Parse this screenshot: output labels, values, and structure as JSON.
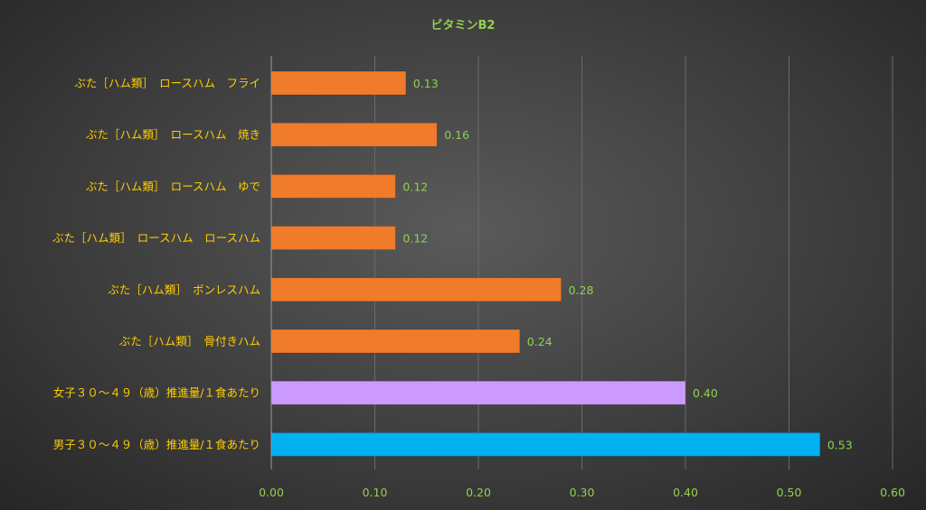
{
  "chart_data": {
    "type": "bar",
    "orientation": "horizontal",
    "title": "ビタミンB2",
    "categories": [
      "ぶた［ハム類］　ロースハム　フライ",
      "ぶた［ハム類］　ロースハム　焼き",
      "ぶた［ハム類］　ロースハム　ゆで",
      "ぶた［ハム類］　ロースハム　ロースハム",
      "ぶた［ハム類］　ボンレスハム",
      "ぶた［ハム類］　骨付きハム",
      "女子３０～４９（歳）推進量/１食あたり",
      "男子３０～４９（歳）推進量/１食あたり"
    ],
    "values": [
      0.13,
      0.16,
      0.12,
      0.12,
      0.28,
      0.24,
      0.4,
      0.53
    ],
    "value_labels": [
      "0.13",
      "0.16",
      "0.12",
      "0.12",
      "0.28",
      "0.24",
      "0.40",
      "0.53"
    ],
    "bar_colors": [
      "#f07b2a",
      "#f07b2a",
      "#f07b2a",
      "#f07b2a",
      "#f07b2a",
      "#f07b2a",
      "#cc99ff",
      "#00b0f0"
    ],
    "xlim": [
      0,
      0.6
    ],
    "xticks": [
      "0.00",
      "0.10",
      "0.20",
      "0.30",
      "0.40",
      "0.50",
      "0.60"
    ],
    "xlabel": "",
    "ylabel": "",
    "grid": true,
    "legend": "none"
  },
  "colors": {
    "title": "#92d050",
    "category_label": "#ffcc00",
    "tick_label": "#92d050",
    "value_label": "#92d050",
    "grid": "#6a6a6a",
    "axis": "#9a9a9a"
  }
}
